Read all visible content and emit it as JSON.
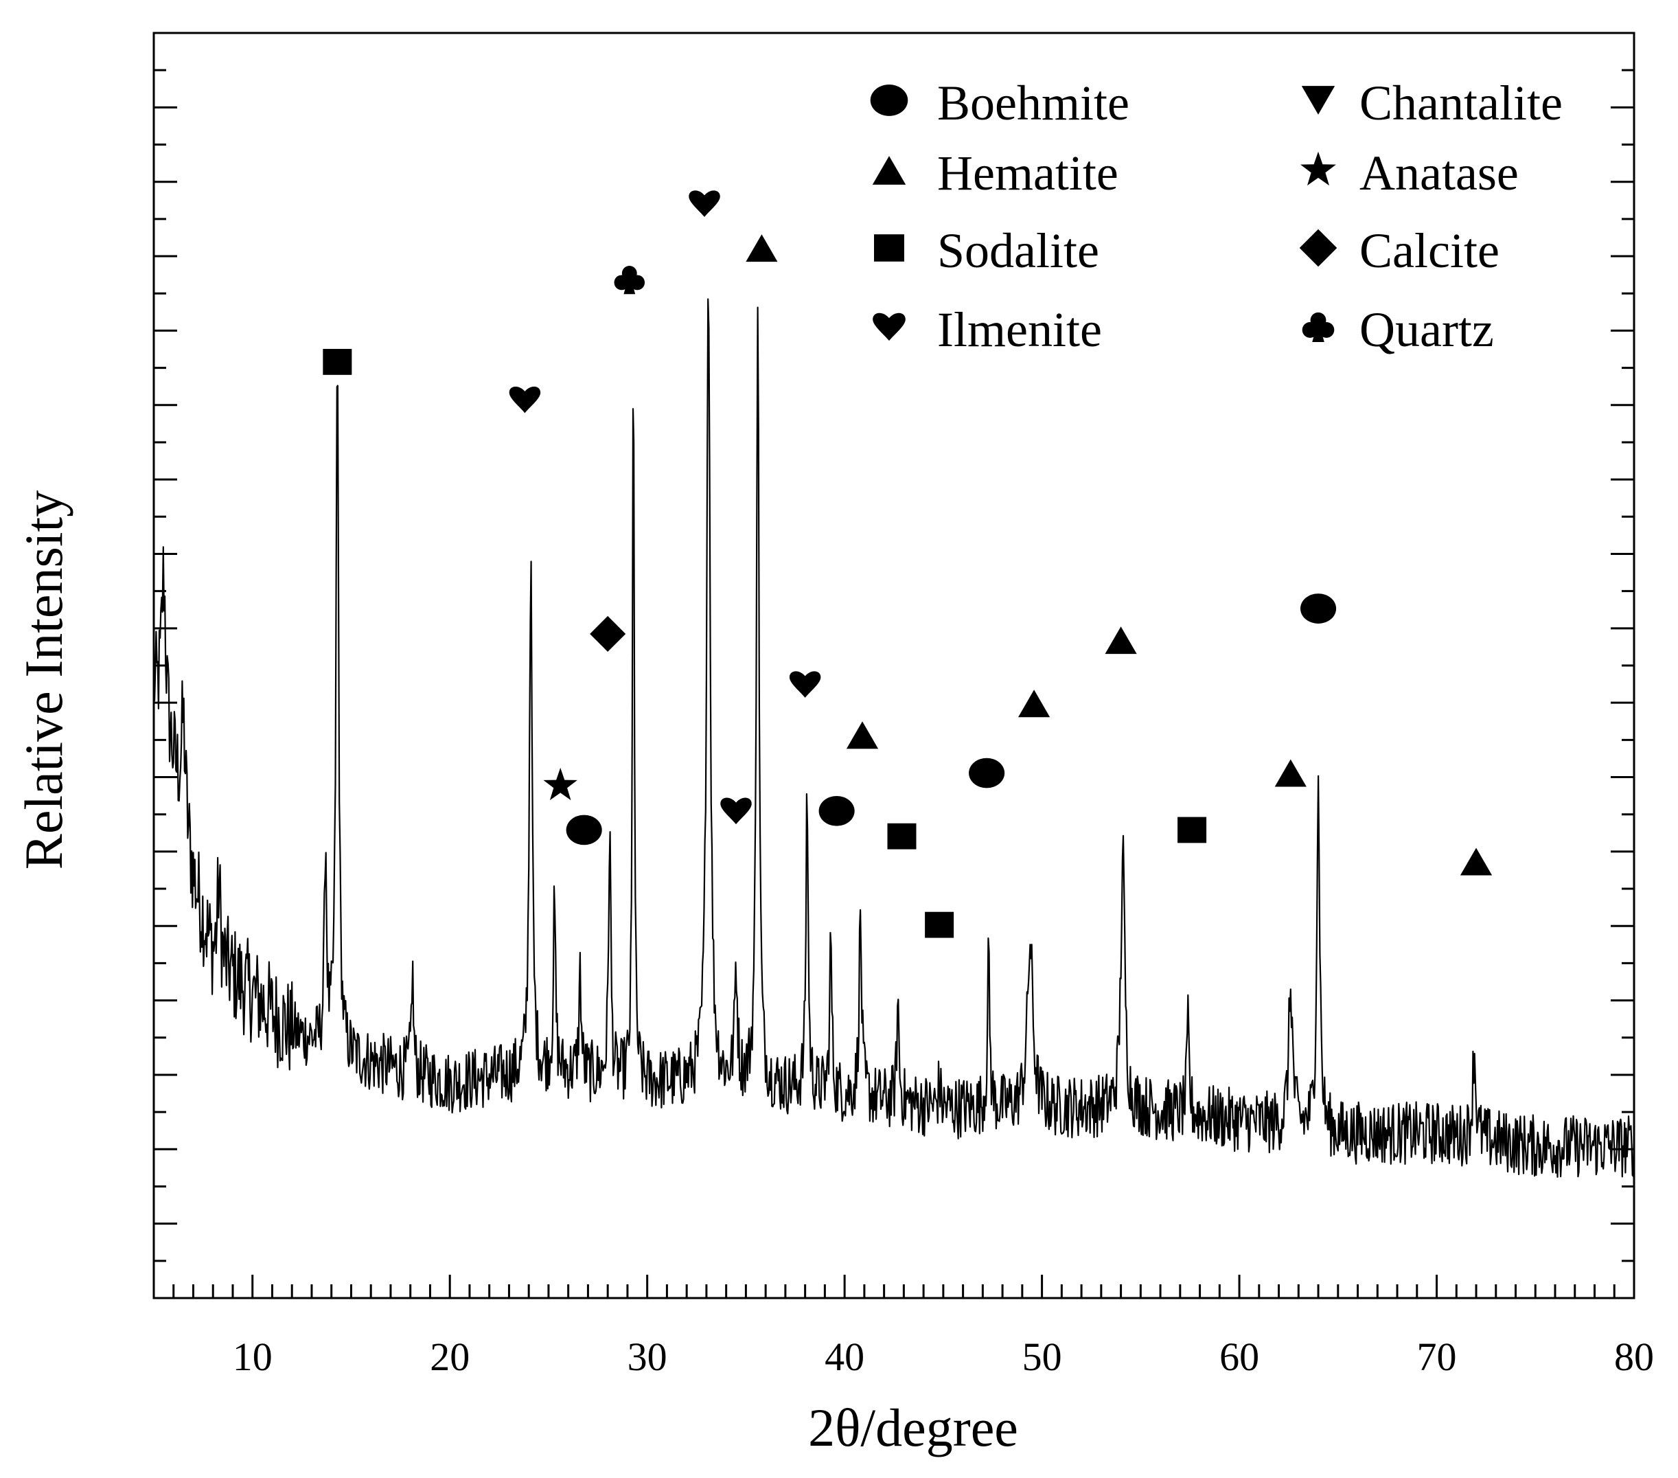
{
  "chart_data": {
    "type": "line",
    "title": "",
    "xlabel": "2θ/degree",
    "ylabel": "Relative Intensity",
    "xlim": [
      5,
      80
    ],
    "ylim": [
      0,
      100
    ],
    "xticks": [
      10,
      20,
      30,
      40,
      50,
      60,
      70,
      80
    ],
    "yticks_labeled": false,
    "grid": false,
    "legend_position": "top-right",
    "legend": [
      {
        "symbol": "circle",
        "label": "Boehmite"
      },
      {
        "symbol": "triangle-down",
        "label": "Chantalite"
      },
      {
        "symbol": "triangle-up",
        "label": "Hematite"
      },
      {
        "symbol": "star",
        "label": "Anatase"
      },
      {
        "symbol": "square",
        "label": "Sodalite"
      },
      {
        "symbol": "diamond",
        "label": "Calcite"
      },
      {
        "symbol": "heart",
        "label": "Ilmenite"
      },
      {
        "symbol": "club",
        "label": "Quartz"
      }
    ],
    "baseline": [
      [
        5,
        48
      ],
      [
        6,
        42
      ],
      [
        7,
        33
      ],
      [
        8,
        27
      ],
      [
        10,
        24
      ],
      [
        12,
        21
      ],
      [
        15,
        19
      ],
      [
        20,
        17
      ],
      [
        25,
        18
      ],
      [
        30,
        17
      ],
      [
        35,
        17
      ],
      [
        40,
        16
      ],
      [
        45,
        15
      ],
      [
        50,
        15
      ],
      [
        55,
        15
      ],
      [
        60,
        14
      ],
      [
        65,
        13
      ],
      [
        70,
        13
      ],
      [
        75,
        12
      ],
      [
        80,
        12
      ]
    ],
    "noise_amplitude": 2.5,
    "peaks": [
      {
        "x": 5.5,
        "height": 12,
        "width": 0.2
      },
      {
        "x": 6.5,
        "height": 8,
        "width": 0.2
      },
      {
        "x": 8.3,
        "height": 6,
        "width": 0.15
      },
      {
        "x": 13.7,
        "height": 16,
        "width": 0.1
      },
      {
        "x": 14.3,
        "height": 55,
        "width": 0.12
      },
      {
        "x": 18.1,
        "height": 8,
        "width": 0.1
      },
      {
        "x": 24.1,
        "height": 40,
        "width": 0.13
      },
      {
        "x": 25.3,
        "height": 13,
        "width": 0.1
      },
      {
        "x": 26.6,
        "height": 8,
        "width": 0.1
      },
      {
        "x": 28.1,
        "height": 20,
        "width": 0.1
      },
      {
        "x": 29.3,
        "height": 59,
        "width": 0.08
      },
      {
        "x": 33.1,
        "height": 64,
        "width": 0.16
      },
      {
        "x": 34.5,
        "height": 9,
        "width": 0.12
      },
      {
        "x": 35.6,
        "height": 62,
        "width": 0.12
      },
      {
        "x": 38.1,
        "height": 24,
        "width": 0.1
      },
      {
        "x": 39.3,
        "height": 12,
        "width": 0.1
      },
      {
        "x": 40.8,
        "height": 14,
        "width": 0.12
      },
      {
        "x": 42.7,
        "height": 8,
        "width": 0.1
      },
      {
        "x": 44.8,
        "height": 2,
        "width": 0.1
      },
      {
        "x": 47.3,
        "height": 12,
        "width": 0.1
      },
      {
        "x": 49.4,
        "height": 13,
        "width": 0.25
      },
      {
        "x": 54.1,
        "height": 20,
        "width": 0.18
      },
      {
        "x": 57.4,
        "height": 7,
        "width": 0.1
      },
      {
        "x": 62.6,
        "height": 11,
        "width": 0.18
      },
      {
        "x": 64.0,
        "height": 27,
        "width": 0.14
      },
      {
        "x": 71.9,
        "height": 7,
        "width": 0.14
      }
    ],
    "markers": [
      {
        "symbol": "square",
        "x": 14.3,
        "y": 74,
        "phase": "Sodalite"
      },
      {
        "symbol": "heart",
        "x": 23.8,
        "y": 71,
        "phase": "Ilmenite"
      },
      {
        "symbol": "club",
        "x": 29.1,
        "y": 80.5,
        "phase": "Quartz"
      },
      {
        "symbol": "heart",
        "x": 32.9,
        "y": 86.5,
        "phase": "Ilmenite"
      },
      {
        "symbol": "triangle-up",
        "x": 35.8,
        "y": 83,
        "phase": "Hematite"
      },
      {
        "symbol": "diamond",
        "x": 28.0,
        "y": 52.5,
        "phase": "Calcite"
      },
      {
        "symbol": "heart",
        "x": 38.0,
        "y": 48.5,
        "phase": "Ilmenite"
      },
      {
        "symbol": "star",
        "x": 25.6,
        "y": 40.5,
        "phase": "Anatase"
      },
      {
        "symbol": "circle",
        "x": 26.8,
        "y": 37,
        "phase": "Boehmite"
      },
      {
        "symbol": "heart",
        "x": 34.5,
        "y": 38.5,
        "phase": "Ilmenite"
      },
      {
        "symbol": "circle",
        "x": 39.6,
        "y": 38.5,
        "phase": "Boehmite"
      },
      {
        "symbol": "triangle-up",
        "x": 40.9,
        "y": 44.5,
        "phase": "Hematite"
      },
      {
        "symbol": "square",
        "x": 42.9,
        "y": 36.5,
        "phase": "Sodalite"
      },
      {
        "symbol": "square",
        "x": 44.8,
        "y": 29.5,
        "phase": "Sodalite"
      },
      {
        "symbol": "circle",
        "x": 47.2,
        "y": 41.5,
        "phase": "Boehmite"
      },
      {
        "symbol": "triangle-up",
        "x": 49.6,
        "y": 47,
        "phase": "Hematite"
      },
      {
        "symbol": "triangle-up",
        "x": 54.0,
        "y": 52,
        "phase": "Hematite"
      },
      {
        "symbol": "square",
        "x": 57.6,
        "y": 37,
        "phase": "Sodalite"
      },
      {
        "symbol": "triangle-up",
        "x": 62.6,
        "y": 41.5,
        "phase": "Hematite"
      },
      {
        "symbol": "circle",
        "x": 64.0,
        "y": 54.5,
        "phase": "Boehmite"
      },
      {
        "symbol": "triangle-up",
        "x": 72.0,
        "y": 34.5,
        "phase": "Hematite"
      }
    ]
  }
}
